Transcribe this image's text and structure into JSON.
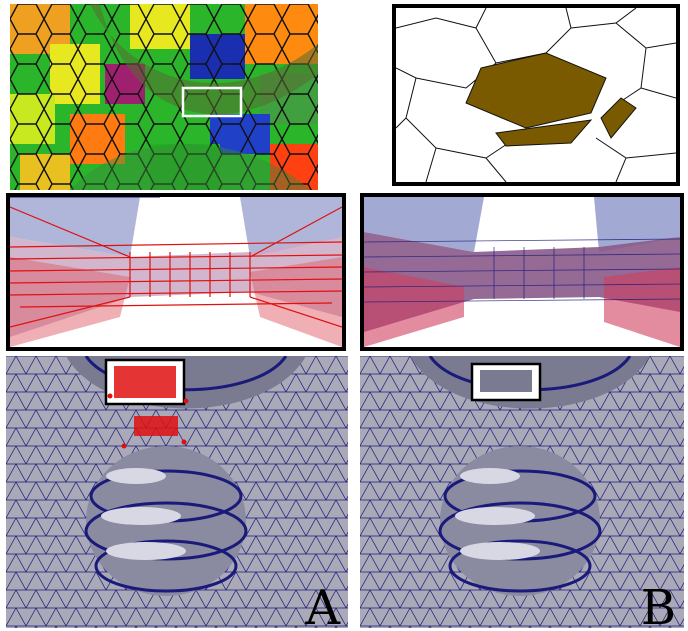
{
  "labels": {
    "left": "A",
    "right": "B"
  },
  "colors": {
    "mesh_fill": "#a9a9b8",
    "mesh_line": "#1a1a7a",
    "highlight_red": "#e01010",
    "cell_brown": "#7a5a00",
    "frame": "#000000"
  }
}
